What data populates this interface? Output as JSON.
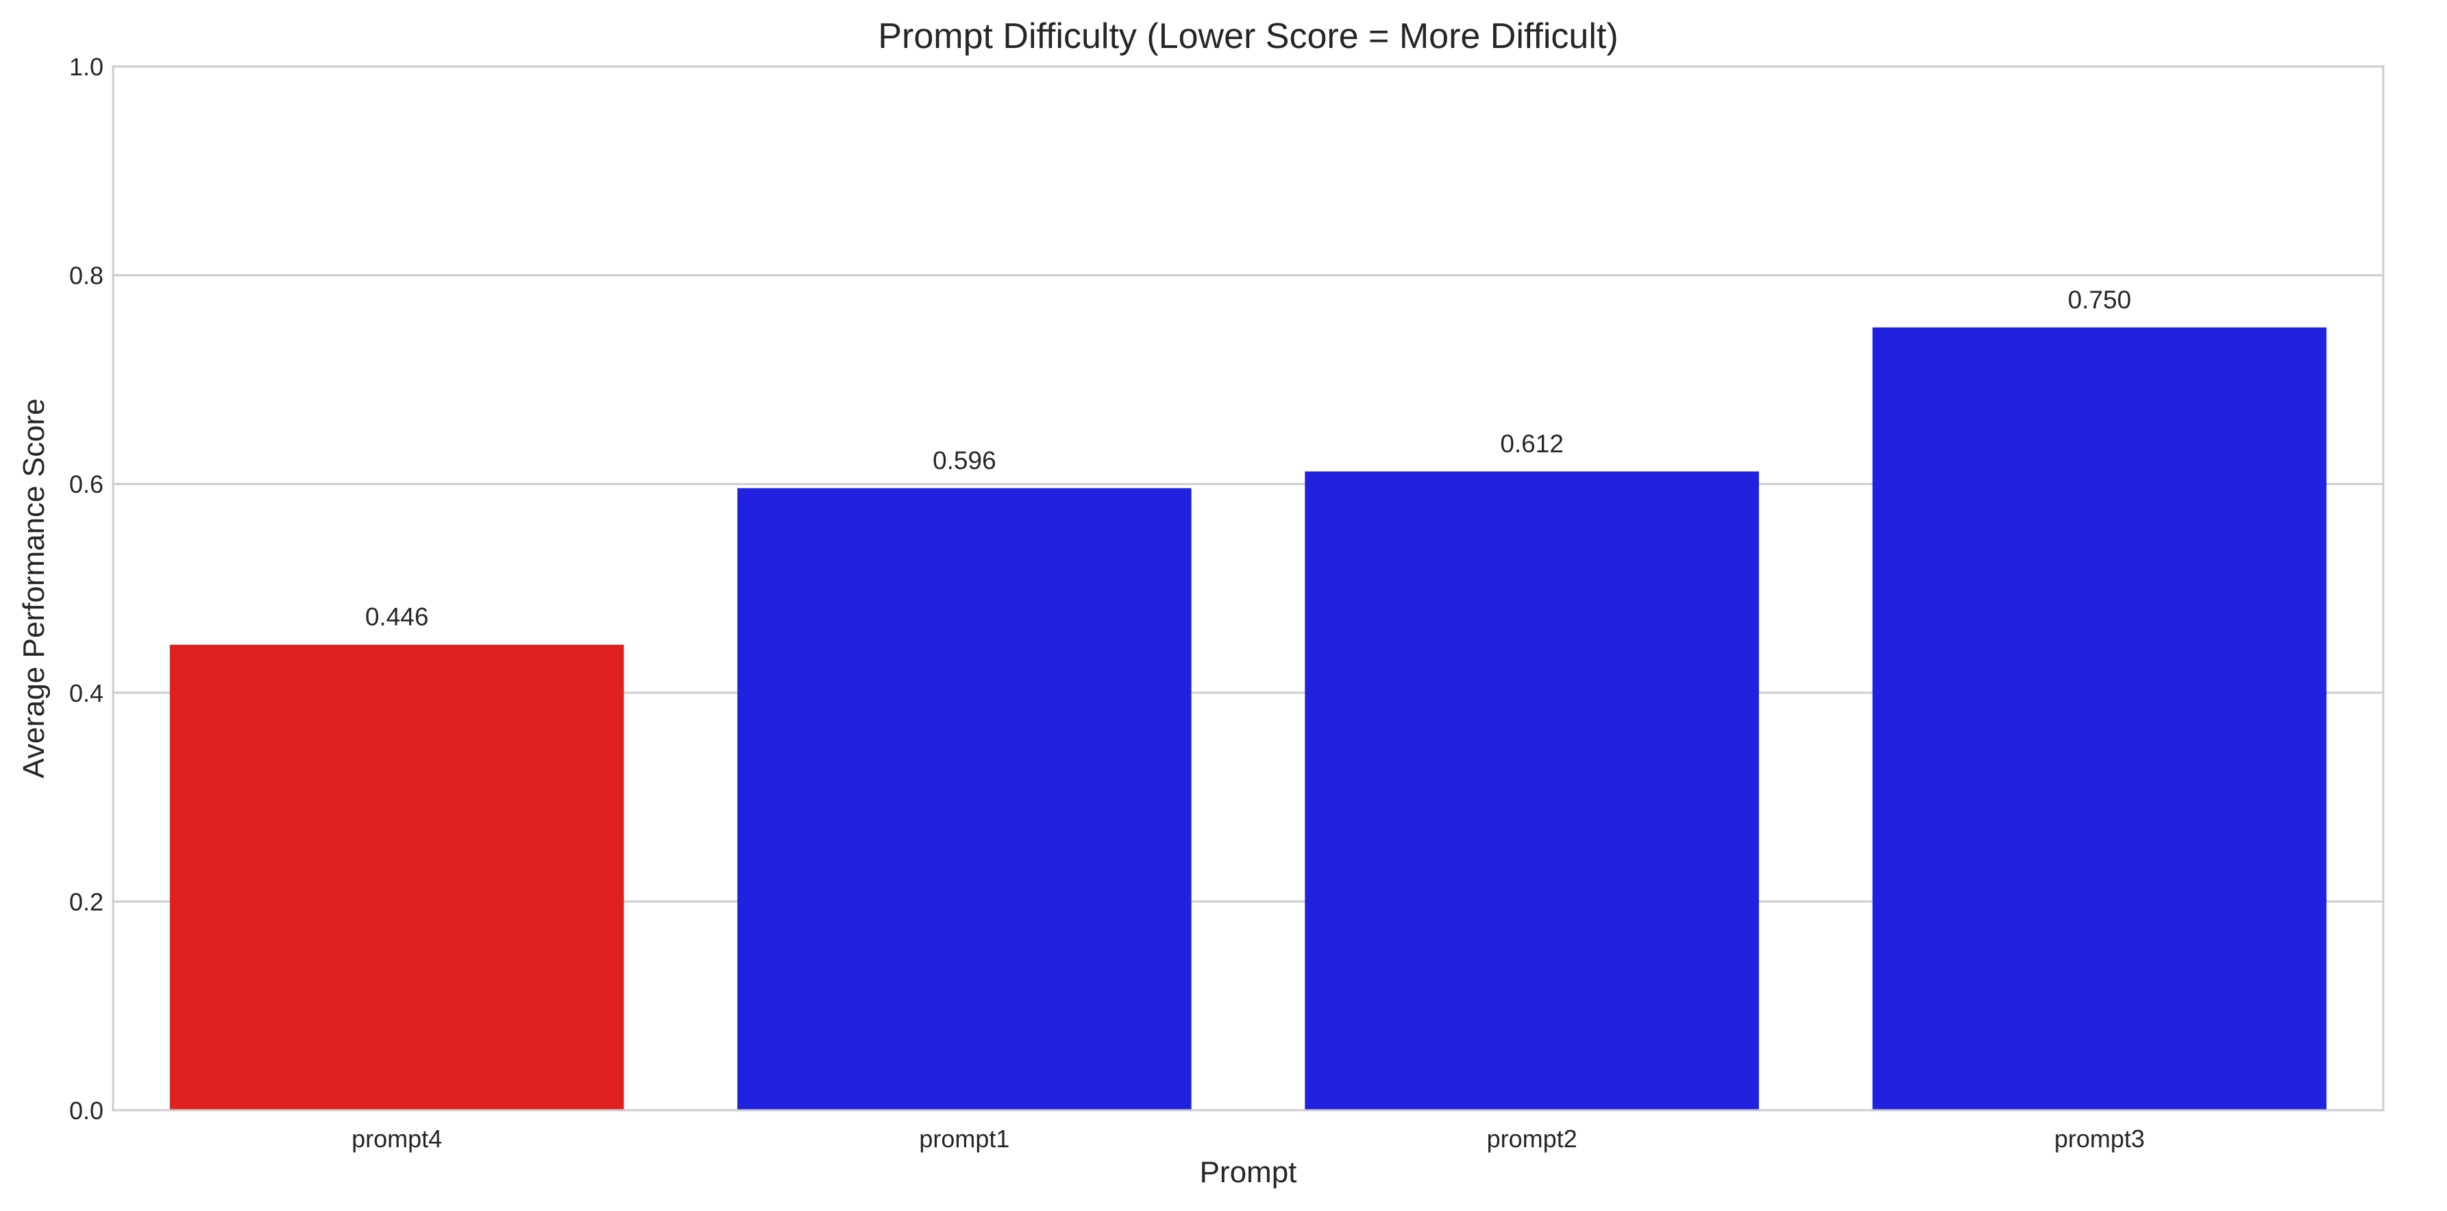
{
  "chart_data": {
    "type": "bar",
    "title": "Prompt Difficulty (Lower Score = More Difficult)",
    "xlabel": "Prompt",
    "ylabel": "Average Performance Score",
    "categories": [
      "prompt4",
      "prompt1",
      "prompt2",
      "prompt3"
    ],
    "values": [
      0.446,
      0.596,
      0.612,
      0.75
    ],
    "value_labels": [
      "0.446",
      "0.596",
      "0.612",
      "0.750"
    ],
    "bar_colors": [
      "#e01f1f",
      "#2121e0",
      "#2121e0",
      "#2121e0"
    ],
    "ylim": [
      0,
      1.0
    ],
    "yticks": [
      0.0,
      0.2,
      0.4,
      0.6,
      0.8,
      1.0
    ],
    "ytick_labels": [
      "0.0",
      "0.2",
      "0.4",
      "0.6",
      "0.8",
      "1.0"
    ],
    "grid": "horizontal",
    "legend": "none"
  }
}
